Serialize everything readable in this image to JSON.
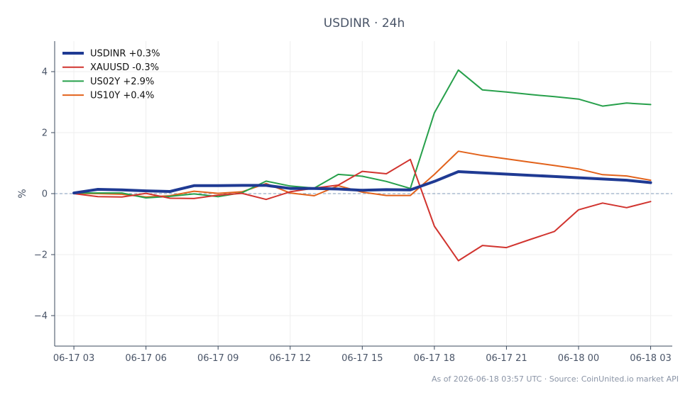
{
  "chart_data": {
    "type": "line",
    "title": "USDINR · 24h",
    "ylabel": "%",
    "xlabel": "",
    "ylim": [
      -5,
      5
    ],
    "yticks": [
      -4,
      -2,
      0,
      2,
      4
    ],
    "ytick_labels": [
      "−4",
      "−2",
      "0",
      "2",
      "4"
    ],
    "xlim": [
      -0.8,
      24.9
    ],
    "xticks": [
      0,
      3,
      6,
      9,
      12,
      15,
      18,
      21,
      24
    ],
    "xtick_labels": [
      "06-17 03",
      "06-17 06",
      "06-17 09",
      "06-17 12",
      "06-17 15",
      "06-17 18",
      "06-17 21",
      "06-18 00",
      "06-18 03"
    ],
    "x": [
      0,
      1,
      2,
      3,
      4,
      5,
      6,
      7,
      8,
      9,
      10,
      11,
      12,
      13,
      14,
      15,
      16,
      17,
      18,
      19,
      20,
      21,
      22,
      23,
      24
    ],
    "baseline": 0,
    "grid": true,
    "legend_position": "top-left",
    "series": [
      {
        "name": "USDINR +0.3%",
        "color": "#1f3a93",
        "width": 4,
        "values": [
          0.02,
          0.14,
          0.12,
          0.09,
          0.07,
          0.26,
          0.26,
          0.27,
          0.27,
          0.17,
          0.17,
          0.15,
          0.11,
          0.13,
          0.12,
          0.4,
          0.72,
          0.68,
          0.64,
          0.6,
          0.56,
          0.52,
          0.48,
          0.44,
          0.36
        ]
      },
      {
        "name": "XAUUSD -0.3%",
        "color": "#d1342f",
        "width": 2,
        "values": [
          0.0,
          -0.1,
          -0.11,
          0.01,
          -0.15,
          -0.16,
          -0.05,
          0.01,
          -0.19,
          0.06,
          0.18,
          0.28,
          0.73,
          0.65,
          1.12,
          -1.07,
          -2.2,
          -1.7,
          -1.77,
          -1.5,
          -1.24,
          -0.53,
          -0.31,
          -0.46,
          -0.26
        ]
      },
      {
        "name": "US02Y +2.9%",
        "color": "#27a04b",
        "width": 2,
        "values": [
          0.02,
          0.02,
          0.02,
          -0.14,
          -0.09,
          -0.01,
          -0.1,
          0.03,
          0.41,
          0.25,
          0.18,
          0.63,
          0.57,
          0.4,
          0.17,
          2.65,
          4.05,
          3.4,
          3.33,
          3.25,
          3.18,
          3.1,
          2.87,
          2.97,
          2.92
        ]
      },
      {
        "name": "US10Y +0.4%",
        "color": "#e2621b",
        "width": 2,
        "values": [
          0.01,
          0.0,
          -0.02,
          -0.11,
          -0.07,
          0.08,
          0.01,
          0.06,
          0.33,
          0.02,
          -0.07,
          0.26,
          0.05,
          -0.06,
          -0.06,
          0.63,
          1.39,
          1.25,
          1.14,
          1.03,
          0.92,
          0.81,
          0.62,
          0.58,
          0.44
        ]
      }
    ]
  },
  "footer": "As of 2026-06-18 03:57 UTC · Source: CoinUnited.io market API"
}
